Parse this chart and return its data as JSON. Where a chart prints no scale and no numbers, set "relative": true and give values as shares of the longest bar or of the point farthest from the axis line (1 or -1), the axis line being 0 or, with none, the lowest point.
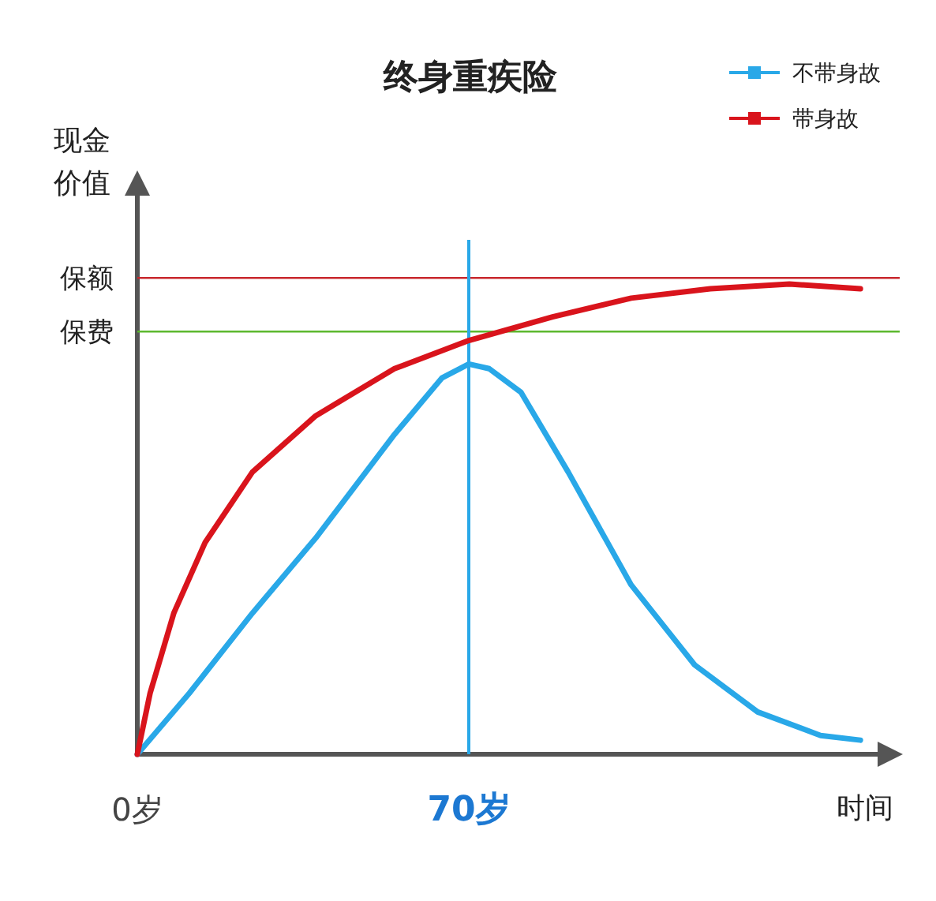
{
  "chart_data": {
    "type": "line",
    "title": "终身重疾险",
    "ylabel": "现金价值",
    "xlabel": "时间",
    "relative": true,
    "legend": "top right",
    "xlim": [
      0,
      161
    ],
    "xticks": [
      {
        "value": 0,
        "label": "0岁"
      },
      {
        "value": 70,
        "label": "70岁"
      }
    ],
    "series": [
      {
        "name": "不带身故",
        "color": "#29a8e8",
        "x": [
          0,
          11,
          24.3,
          37.7,
          54.3,
          64.3,
          70,
          74.3,
          81,
          91,
          104.3,
          117.7,
          131,
          144.3,
          152.7
        ],
        "values": [
          0,
          0.13,
          0.3,
          0.46,
          0.68,
          0.8,
          0.83,
          0.82,
          0.77,
          0.6,
          0.36,
          0.19,
          0.09,
          0.04,
          0.03
        ]
      },
      {
        "name": "带身故",
        "color": "#d9141c",
        "x": [
          0,
          2.7,
          7.7,
          14.3,
          24.3,
          37.7,
          54.3,
          70,
          87.7,
          104.3,
          121,
          137.7,
          152.7
        ],
        "values": [
          0,
          0.13,
          0.3,
          0.45,
          0.6,
          0.72,
          0.82,
          0.88,
          0.93,
          0.97,
          0.99,
          1,
          0.99
        ]
      }
    ],
    "ref_lines": [
      {
        "axis": "y",
        "value": 1.013,
        "label": "保额",
        "color": "#c8282d"
      },
      {
        "axis": "y",
        "value": 0.899,
        "label": "保费",
        "color": "#5cb82e"
      },
      {
        "axis": "x",
        "value": 70,
        "color": "#29a8e8"
      }
    ]
  }
}
